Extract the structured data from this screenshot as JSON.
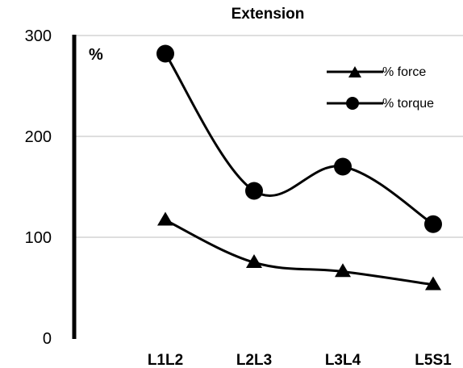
{
  "chart_data": {
    "type": "line",
    "title": "Extension",
    "ylabel": "%",
    "xlabel": "",
    "categories": [
      "L1L2",
      "L2L3",
      "L3L4",
      "L5S1"
    ],
    "ylim": [
      0,
      300
    ],
    "yticks": [
      "0",
      "100",
      "200",
      "300"
    ],
    "grid": true,
    "legend_position": "top-right",
    "series": [
      {
        "name": "% force",
        "marker": "triangle",
        "values": [
          117,
          75,
          66,
          53
        ]
      },
      {
        "name": "% torque",
        "marker": "circle",
        "values": [
          282,
          146,
          170,
          113
        ]
      }
    ]
  }
}
